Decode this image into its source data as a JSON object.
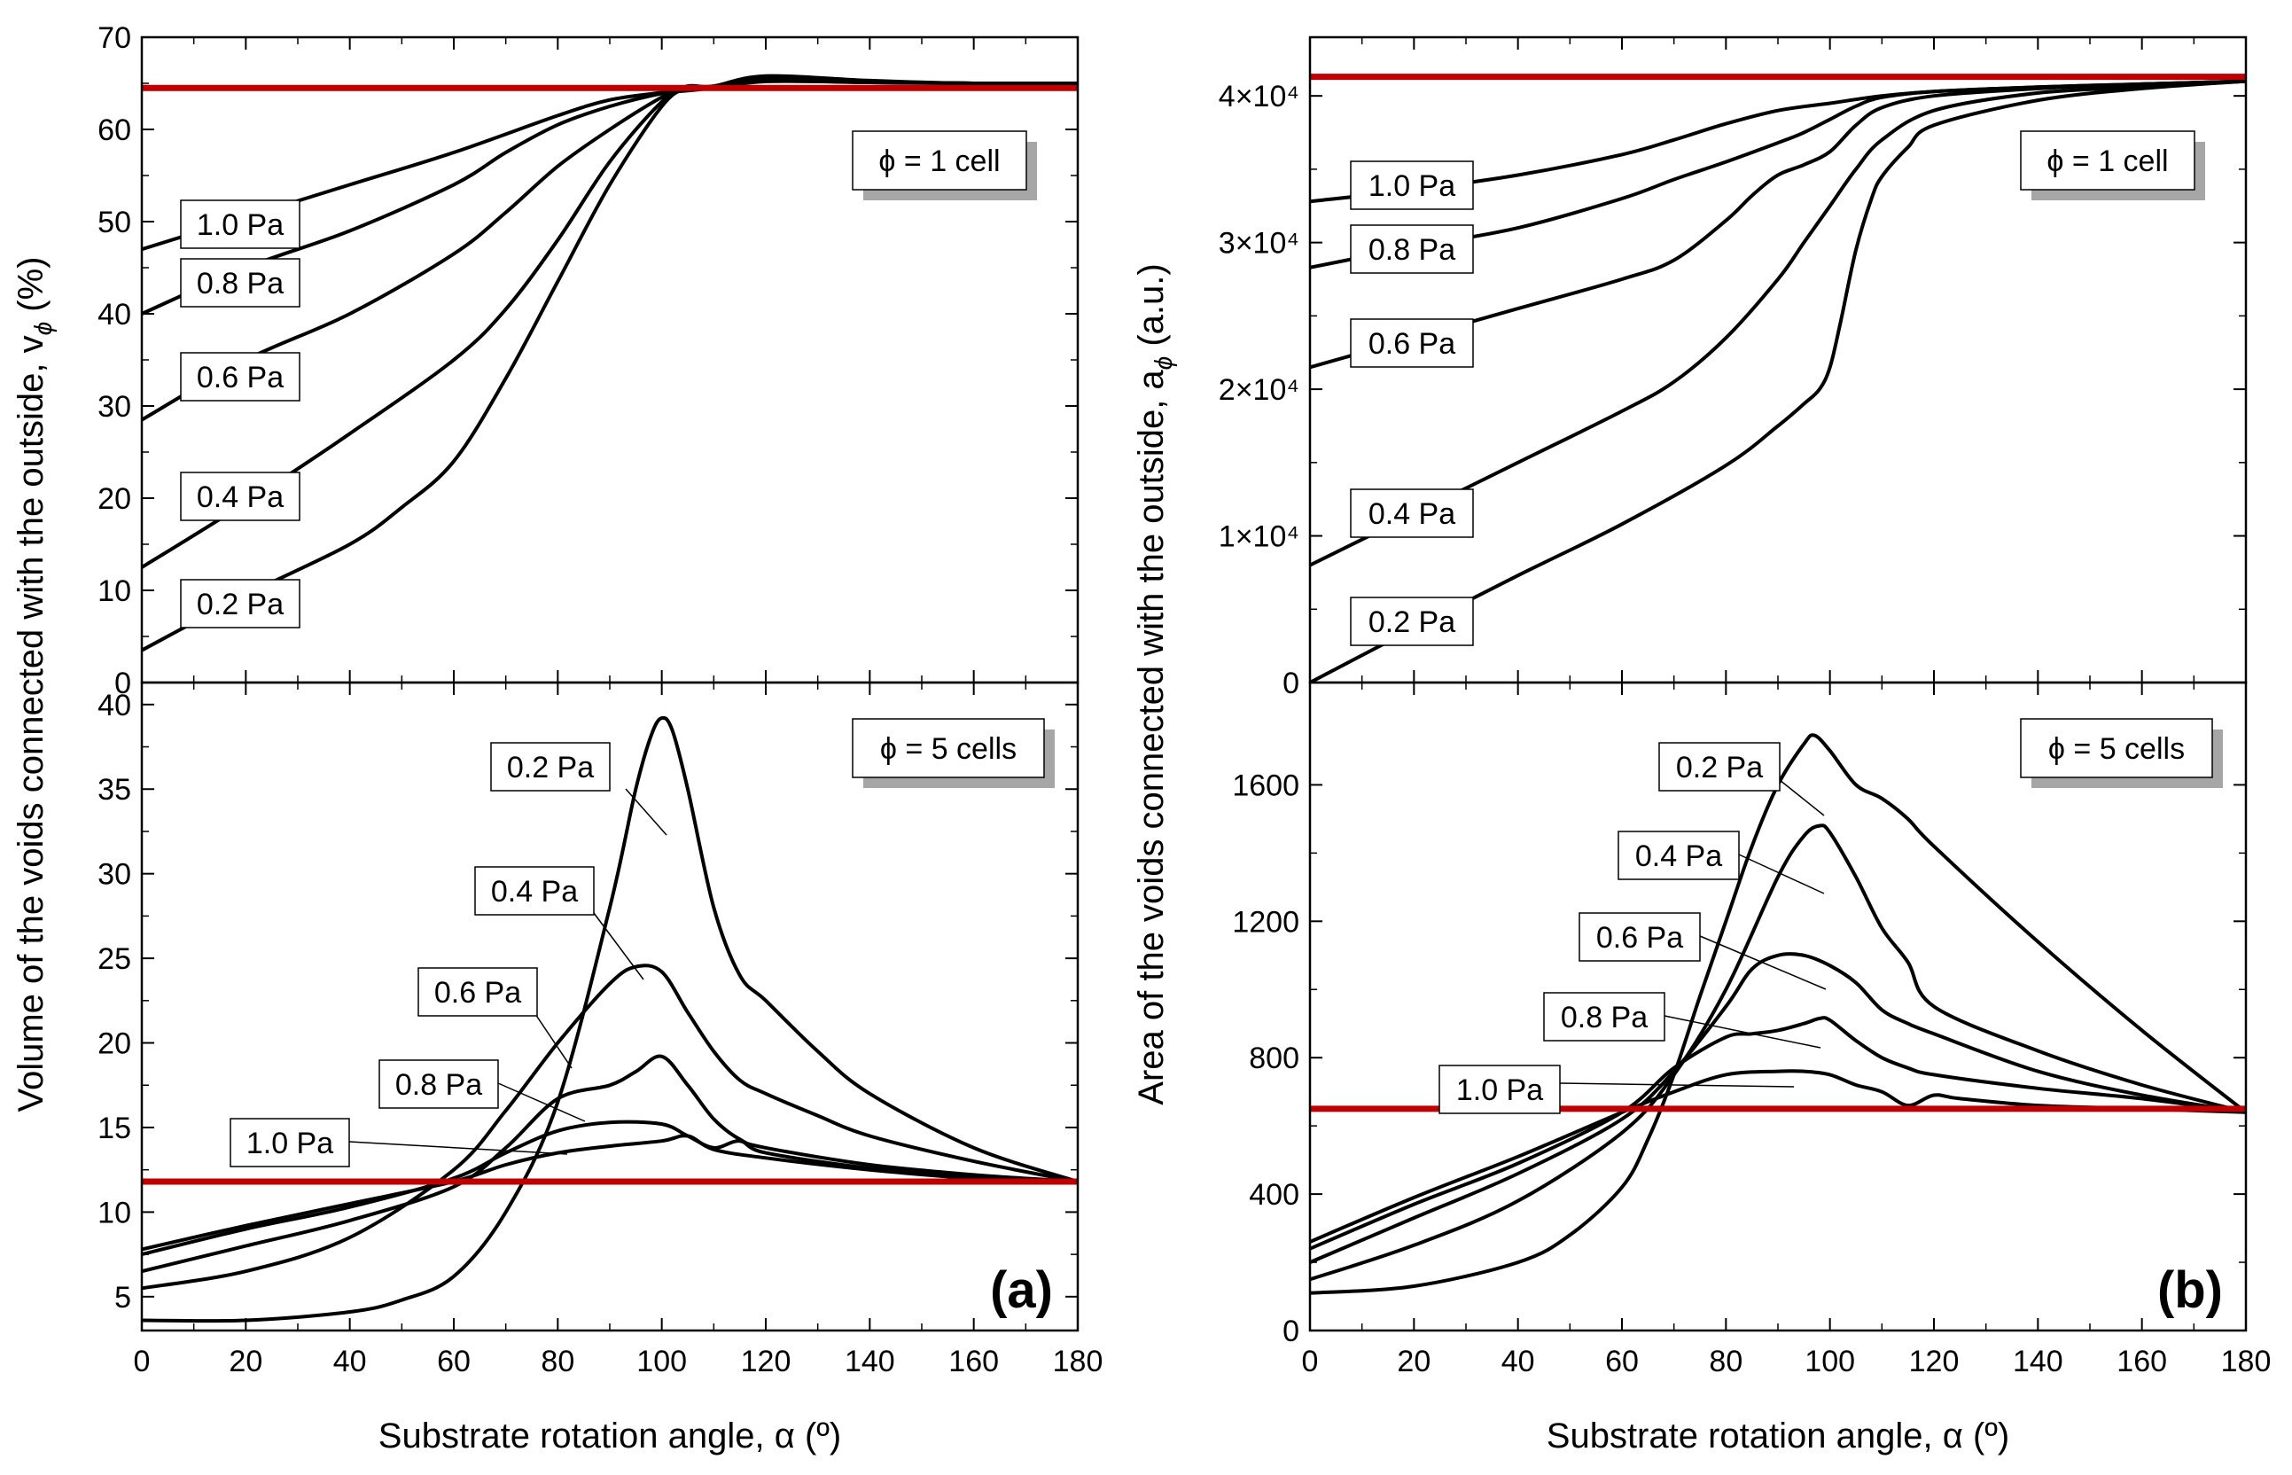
{
  "chart_data": [
    {
      "type": "line",
      "panel": "(a)",
      "xlabel": "Substrate rotation angle, α (º)",
      "ylabel": "Volume of the voids connected with the outside, v",
      "ylabel_sub": "ϕ",
      "ylabel_unit": " (%)",
      "x_ticks": [
        "0",
        "20",
        "40",
        "60",
        "80",
        "100",
        "120",
        "140",
        "160",
        "180"
      ],
      "xlim": [
        0,
        180
      ],
      "subplots": [
        {
          "label": "ϕ = 1 cell",
          "ylim": [
            0,
            70
          ],
          "y_ticks": [
            "0",
            "10",
            "20",
            "30",
            "40",
            "50",
            "60",
            "70"
          ],
          "reference_line": 64.5,
          "series": [
            {
              "name": "1.0 Pa",
              "x": [
                0,
                20,
                40,
                60,
                80,
                90,
                100,
                105,
                110,
                120,
                140,
                160,
                180
              ],
              "values": [
                47,
                50.5,
                54,
                57.5,
                61.5,
                63.2,
                64,
                64.4,
                64.5,
                65.2,
                65.1,
                65,
                65
              ]
            },
            {
              "name": "0.8 Pa",
              "x": [
                0,
                20,
                40,
                60,
                70,
                80,
                90,
                100,
                105,
                110,
                120,
                140,
                160,
                180
              ],
              "values": [
                40,
                45,
                49,
                54,
                57.5,
                60.5,
                62.5,
                63.9,
                64.2,
                64.5,
                65.3,
                65.1,
                65,
                65
              ]
            },
            {
              "name": "0.6 Pa",
              "x": [
                0,
                20,
                40,
                60,
                70,
                80,
                90,
                100,
                105,
                110,
                120,
                140,
                160,
                180
              ],
              "values": [
                28.5,
                35,
                40,
                46.5,
                51,
                56,
                60,
                63.5,
                64.7,
                64.6,
                65.5,
                65.2,
                65,
                65
              ]
            },
            {
              "name": "0.4 Pa",
              "x": [
                0,
                20,
                40,
                60,
                70,
                80,
                90,
                100,
                105,
                110,
                120,
                140,
                160,
                180
              ],
              "values": [
                12.5,
                19.5,
                27,
                35,
                40.5,
                48,
                56.5,
                63,
                64.6,
                64.6,
                65.6,
                65.2,
                65,
                65
              ]
            },
            {
              "name": "0.2 Pa",
              "x": [
                0,
                20,
                40,
                50,
                60,
                70,
                80,
                90,
                100,
                105,
                110,
                120,
                140,
                160,
                180
              ],
              "values": [
                3.5,
                9.5,
                15,
                19,
                24,
                33,
                43.5,
                54,
                62.5,
                64.5,
                64.7,
                65.8,
                65.3,
                65,
                65
              ]
            }
          ]
        },
        {
          "label": "ϕ = 5 cells",
          "ylim": [
            3,
            41.3
          ],
          "y_ticks": [
            "5",
            "10",
            "15",
            "20",
            "25",
            "30",
            "35",
            "40"
          ],
          "reference_line": 11.8,
          "series": [
            {
              "name": "0.2 Pa",
              "x": [
                0,
                20,
                40,
                50,
                60,
                70,
                80,
                90,
                95,
                98,
                100,
                102,
                105,
                110,
                115,
                120,
                130,
                140,
                160,
                180
              ],
              "values": [
                3.6,
                3.6,
                4.1,
                4.8,
                6.2,
                10,
                16.5,
                28,
                35,
                38.2,
                39.2,
                38.5,
                35,
                28,
                24,
                22.5,
                19.5,
                17,
                13.8,
                11.8
              ]
            },
            {
              "name": "0.4 Pa",
              "x": [
                0,
                20,
                40,
                60,
                70,
                80,
                90,
                95,
                100,
                105,
                110,
                115,
                120,
                130,
                140,
                160,
                180
              ],
              "values": [
                5.5,
                6.5,
                8.5,
                12.5,
                16,
                20,
                23.5,
                24.5,
                24.2,
                21.8,
                19.5,
                17.8,
                17,
                15.7,
                14.5,
                13,
                11.8
              ]
            },
            {
              "name": "0.6 Pa",
              "x": [
                0,
                20,
                40,
                60,
                70,
                80,
                90,
                95,
                100,
                105,
                110,
                115,
                120,
                140,
                160,
                180
              ],
              "values": [
                6.5,
                8,
                9.5,
                11.5,
                13.8,
                16.7,
                17.5,
                18.3,
                19.2,
                17.5,
                15.5,
                14.3,
                13.8,
                12.8,
                12.2,
                11.8
              ]
            },
            {
              "name": "0.8 Pa",
              "x": [
                0,
                20,
                40,
                60,
                70,
                80,
                90,
                100,
                105,
                110,
                115,
                120,
                140,
                160,
                180
              ],
              "values": [
                7.5,
                9,
                10.3,
                12,
                13.5,
                14.8,
                15.3,
                15.2,
                14.5,
                13.8,
                14.2,
                13.5,
                12.6,
                12.1,
                11.8
              ]
            },
            {
              "name": "1.0 Pa",
              "x": [
                0,
                20,
                40,
                60,
                70,
                80,
                90,
                100,
                105,
                110,
                120,
                140,
                160,
                180
              ],
              "values": [
                7.8,
                9.2,
                10.5,
                11.8,
                12.8,
                13.5,
                13.9,
                14.2,
                14.5,
                13.7,
                13.2,
                12.5,
                12,
                11.8
              ]
            }
          ]
        }
      ]
    },
    {
      "type": "line",
      "panel": "(b)",
      "xlabel": "Substrate rotation angle, α (º)",
      "ylabel": "Area of the voids connected with the outside, a",
      "ylabel_sub": "ϕ",
      "ylabel_unit": " (a.u.)",
      "x_ticks": [
        "0",
        "20",
        "40",
        "60",
        "80",
        "100",
        "120",
        "140",
        "160",
        "180"
      ],
      "xlim": [
        0,
        180
      ],
      "subplots": [
        {
          "label": "ϕ = 1 cell",
          "ylim": [
            0,
            44000
          ],
          "y_ticks": [
            "0",
            "1×10⁴",
            "2×10⁴",
            "3×10⁴",
            "4×10⁴"
          ],
          "reference_line": 41300,
          "series": [
            {
              "name": "1.0 Pa",
              "x": [
                0,
                20,
                40,
                60,
                70,
                80,
                90,
                100,
                110,
                120,
                140,
                160,
                180
              ],
              "values": [
                32800,
                33600,
                34600,
                36000,
                37000,
                38100,
                39000,
                39500,
                40000,
                40300,
                40600,
                40800,
                41000
              ]
            },
            {
              "name": "0.8 Pa",
              "x": [
                0,
                20,
                40,
                60,
                70,
                80,
                90,
                95,
                100,
                105,
                110,
                120,
                140,
                160,
                180
              ],
              "values": [
                28300,
                29700,
                31000,
                33000,
                34300,
                35500,
                36800,
                37500,
                38400,
                39300,
                39900,
                40300,
                40600,
                40800,
                41000
              ]
            },
            {
              "name": "0.6 Pa",
              "x": [
                0,
                20,
                40,
                60,
                70,
                80,
                85,
                90,
                95,
                100,
                105,
                110,
                120,
                140,
                160,
                180
              ],
              "values": [
                21500,
                23500,
                25500,
                27500,
                28800,
                31500,
                33200,
                34600,
                35300,
                36200,
                38000,
                39200,
                40000,
                40500,
                40800,
                41000
              ]
            },
            {
              "name": "0.4 Pa",
              "x": [
                0,
                20,
                40,
                60,
                70,
                80,
                90,
                95,
                100,
                105,
                110,
                120,
                140,
                160,
                180
              ],
              "values": [
                8000,
                11500,
                15000,
                18500,
                20500,
                23500,
                27500,
                30000,
                32500,
                35000,
                37000,
                39000,
                40200,
                40600,
                41000
              ]
            },
            {
              "name": "0.2 Pa",
              "x": [
                0,
                20,
                40,
                60,
                80,
                90,
                95,
                98,
                100,
                102,
                105,
                108,
                110,
                115,
                120,
                140,
                160,
                180
              ],
              "values": [
                0,
                3700,
                7300,
                10800,
                14800,
                17500,
                19000,
                20000,
                21500,
                24500,
                29500,
                33000,
                34500,
                36500,
                38000,
                39700,
                40500,
                41000
              ]
            }
          ]
        },
        {
          "label": "ϕ = 5 cells",
          "ylim": [
            0,
            1900
          ],
          "y_ticks": [
            "0",
            "400",
            "800",
            "1200",
            "1600"
          ],
          "reference_line": 650,
          "series": [
            {
              "name": "0.2 Pa",
              "x": [
                0,
                20,
                40,
                50,
                60,
                65,
                70,
                75,
                80,
                85,
                90,
                95,
                97,
                100,
                105,
                110,
                115,
                120,
                140,
                160,
                180
              ],
              "values": [
                110,
                130,
                200,
                280,
                420,
                560,
                750,
                980,
                1200,
                1420,
                1600,
                1720,
                1745,
                1700,
                1600,
                1560,
                1500,
                1420,
                1140,
                880,
                640
              ]
            },
            {
              "name": "0.4 Pa",
              "x": [
                0,
                20,
                40,
                60,
                70,
                80,
                90,
                95,
                98,
                100,
                105,
                110,
                115,
                120,
                140,
                160,
                180
              ],
              "values": [
                150,
                250,
                380,
                580,
                750,
                1000,
                1330,
                1450,
                1480,
                1460,
                1330,
                1180,
                1080,
                950,
                820,
                720,
                640
              ]
            },
            {
              "name": "0.6 Pa",
              "x": [
                0,
                20,
                40,
                60,
                70,
                80,
                85,
                90,
                95,
                100,
                105,
                110,
                115,
                120,
                140,
                160,
                180
              ],
              "values": [
                200,
                330,
                460,
                620,
                760,
                950,
                1060,
                1100,
                1100,
                1070,
                1020,
                940,
                900,
                870,
                760,
                690,
                640
              ]
            },
            {
              "name": "0.8 Pa",
              "x": [
                0,
                20,
                40,
                60,
                70,
                80,
                85,
                90,
                95,
                98,
                100,
                105,
                110,
                115,
                120,
                140,
                160,
                180
              ],
              "values": [
                240,
                370,
                490,
                640,
                770,
                860,
                870,
                880,
                900,
                915,
                910,
                850,
                800,
                770,
                750,
                710,
                680,
                640
              ]
            },
            {
              "name": "1.0 Pa",
              "x": [
                0,
                20,
                40,
                60,
                70,
                80,
                90,
                95,
                100,
                105,
                110,
                115,
                120,
                125,
                140,
                160,
                180
              ],
              "values": [
                260,
                390,
                510,
                640,
                700,
                750,
                760,
                760,
                750,
                720,
                700,
                660,
                690,
                680,
                660,
                650,
                640
              ]
            }
          ]
        }
      ]
    }
  ]
}
